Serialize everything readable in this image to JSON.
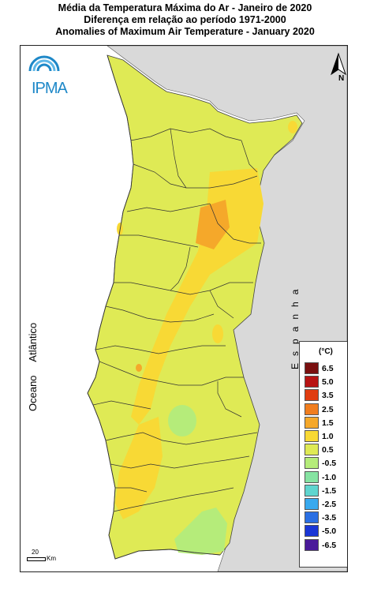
{
  "titles": {
    "line1": "Média da Temperatura Máxima do Ar - Janeiro de 2020",
    "line2": "Diferença em relação ao período 1971-2000",
    "line3": "Anomalies of Maximum Air Temperature - January 2020"
  },
  "logo": {
    "text": "IPMA",
    "icon": "ipma-waves-icon"
  },
  "north_arrow": {
    "label": "N",
    "icon": "north-arrow-icon"
  },
  "labels": {
    "ocean": "Oceano Atlântico",
    "spain": "Espanha"
  },
  "legend": {
    "unit": "(°C)",
    "items": [
      {
        "value": "6.5",
        "color": "#7a1010"
      },
      {
        "value": "5.0",
        "color": "#b81414"
      },
      {
        "value": "3.5",
        "color": "#e03c10"
      },
      {
        "value": "2.5",
        "color": "#f07d1e"
      },
      {
        "value": "1.5",
        "color": "#f5a82a"
      },
      {
        "value": "1.0",
        "color": "#f8d935"
      },
      {
        "value": "0.5",
        "color": "#dfea55"
      },
      {
        "value": "-0.5",
        "color": "#b5ec7a"
      },
      {
        "value": "-1.0",
        "color": "#86e3a2"
      },
      {
        "value": "-1.5",
        "color": "#5fd5cf"
      },
      {
        "value": "-2.5",
        "color": "#38a9ee"
      },
      {
        "value": "-3.5",
        "color": "#2a6fe3"
      },
      {
        "value": "-5.0",
        "color": "#1a36d6"
      },
      {
        "value": "-6.5",
        "color": "#4a1a9a"
      }
    ]
  },
  "scale_bar": {
    "distance": "20",
    "unit": "Km"
  },
  "colors": {
    "land_base": "#dfea55",
    "warm_1": "#f8d935",
    "warm_2": "#f5a82a",
    "cool_1": "#b5ec7a",
    "spain_fill": "#d9d9d9",
    "sea": "#ffffff"
  }
}
